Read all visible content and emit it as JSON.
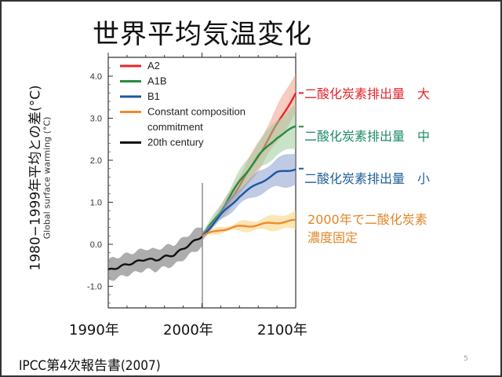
{
  "slide": {
    "title": "世界平均気温変化",
    "y_axis_label_jp": "1980−1999年平均との差(°C)",
    "footer_source": "IPCC第4次報告書(2007)",
    "page_number": "5",
    "x_axis_labels": [
      "1990年",
      "2000年",
      "2100年"
    ],
    "annotations": [
      {
        "text": "二酸化炭素排出量　大",
        "color": "#e0242a",
        "scenario": "A2"
      },
      {
        "text": "二酸化炭素排出量　中",
        "color": "#1f8a64",
        "scenario": "A1B"
      },
      {
        "text": "二酸化炭素排出量　小",
        "color": "#1d5f96",
        "scenario": "B1"
      },
      {
        "text": "2000年で二酸化炭素",
        "color": "#e0872a",
        "scenario": "Constant composition commitment"
      },
      {
        "text": "濃度固定",
        "color": "#e0872a",
        "scenario": "Constant composition commitment"
      }
    ]
  },
  "chart_data": {
    "type": "line",
    "title": "",
    "xlabel": "",
    "ylabel": "Global surface warming (°C)",
    "xlim": [
      1900,
      2100
    ],
    "ylim": [
      -1.5,
      4.5
    ],
    "y_ticks": [
      "4.0",
      "3.0",
      "2.0",
      "1.0",
      "0.0",
      "-1.0"
    ],
    "y_tick_values": [
      4.0,
      3.0,
      2.0,
      1.0,
      0.0,
      -1.0
    ],
    "legend": {
      "placement": "top-left",
      "entries": [
        "A2",
        "A1B",
        "B1",
        "Constant composition",
        "commitment",
        "20th century"
      ]
    },
    "series": [
      {
        "name": "20th century",
        "color": "#111111",
        "band_color": "#8a8a8a",
        "x": [
          1900,
          1910,
          1920,
          1930,
          1940,
          1950,
          1960,
          1970,
          1980,
          1990,
          2000
        ],
        "y": [
          -0.62,
          -0.55,
          -0.48,
          -0.42,
          -0.35,
          -0.38,
          -0.3,
          -0.25,
          -0.1,
          0.05,
          0.2
        ],
        "band": 0.25
      },
      {
        "name": "A2",
        "color": "#e5252b",
        "band_color": "#f0a08a",
        "x": [
          2000,
          2020,
          2040,
          2060,
          2080,
          2100
        ],
        "y": [
          0.2,
          0.75,
          1.4,
          2.1,
          2.85,
          3.6
        ],
        "band": 0.5
      },
      {
        "name": "A1B",
        "color": "#2a8a3e",
        "band_color": "#9ccc9c",
        "x": [
          2000,
          2020,
          2040,
          2060,
          2080,
          2100
        ],
        "y": [
          0.2,
          0.8,
          1.5,
          2.1,
          2.55,
          2.8
        ],
        "band": 0.5
      },
      {
        "name": "B1",
        "color": "#1f57a0",
        "band_color": "#8a9fd0",
        "x": [
          2000,
          2020,
          2040,
          2060,
          2080,
          2100
        ],
        "y": [
          0.2,
          0.7,
          1.15,
          1.45,
          1.7,
          1.8
        ],
        "band": 0.4
      },
      {
        "name": "Constant composition commitment",
        "color": "#f08a2a",
        "band_color": "#f7d27a",
        "x": [
          2000,
          2020,
          2040,
          2060,
          2080,
          2100
        ],
        "y": [
          0.2,
          0.35,
          0.42,
          0.46,
          0.52,
          0.56
        ],
        "band": 0.2
      }
    ]
  }
}
